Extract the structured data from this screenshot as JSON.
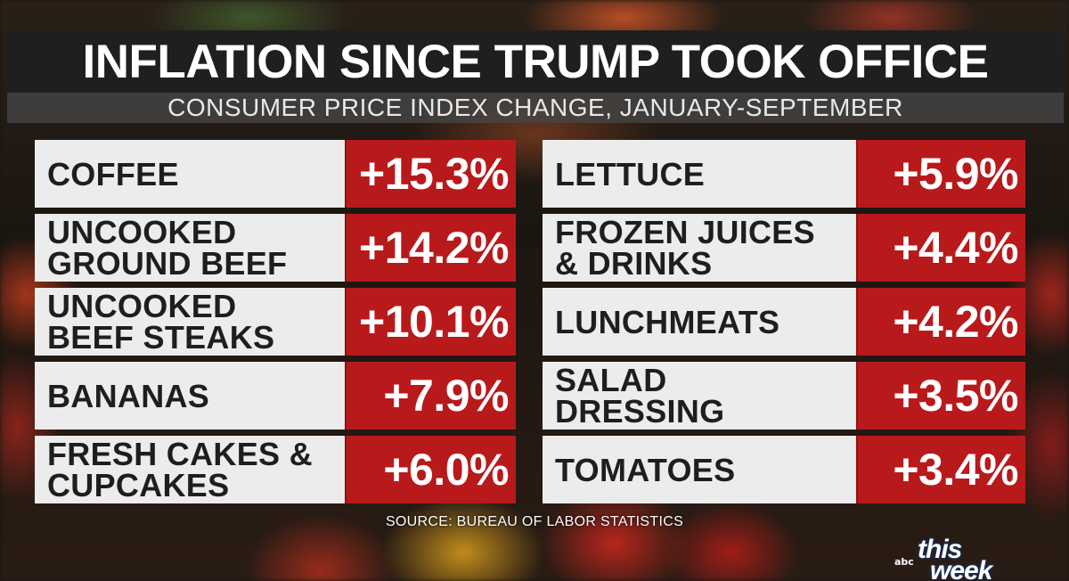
{
  "header": {
    "title": "INFLATION SINCE TRUMP TOOK OFFICE",
    "subtitle": "CONSUMER PRICE INDEX CHANGE, JANUARY-SEPTEMBER"
  },
  "items_left": [
    {
      "label": "COFFEE",
      "value": "+15.3%"
    },
    {
      "label": "UNCOOKED\nGROUND BEEF",
      "value": "+14.2%"
    },
    {
      "label": "UNCOOKED\nBEEF STEAKS",
      "value": "+10.1%"
    },
    {
      "label": "BANANAS",
      "value": "+7.9%"
    },
    {
      "label": "FRESH CAKES &\nCUPCAKES",
      "value": "+6.0%"
    }
  ],
  "items_right": [
    {
      "label": "LETTUCE",
      "value": "+5.9%"
    },
    {
      "label": "FROZEN JUICES\n& DRINKS",
      "value": "+4.4%"
    },
    {
      "label": "LUNCHMEATS",
      "value": "+4.2%"
    },
    {
      "label": "SALAD\nDRESSING",
      "value": "+3.5%"
    },
    {
      "label": "TOMATOES",
      "value": "+3.4%"
    }
  ],
  "source": "SOURCE: BUREAU OF LABOR STATISTICS",
  "logo": {
    "network": "abc",
    "line1": "this",
    "line2": "week"
  },
  "colors": {
    "value_bg": "#b81a1c",
    "label_bg": "#ececec",
    "title_bg": "#1f1f1f"
  }
}
